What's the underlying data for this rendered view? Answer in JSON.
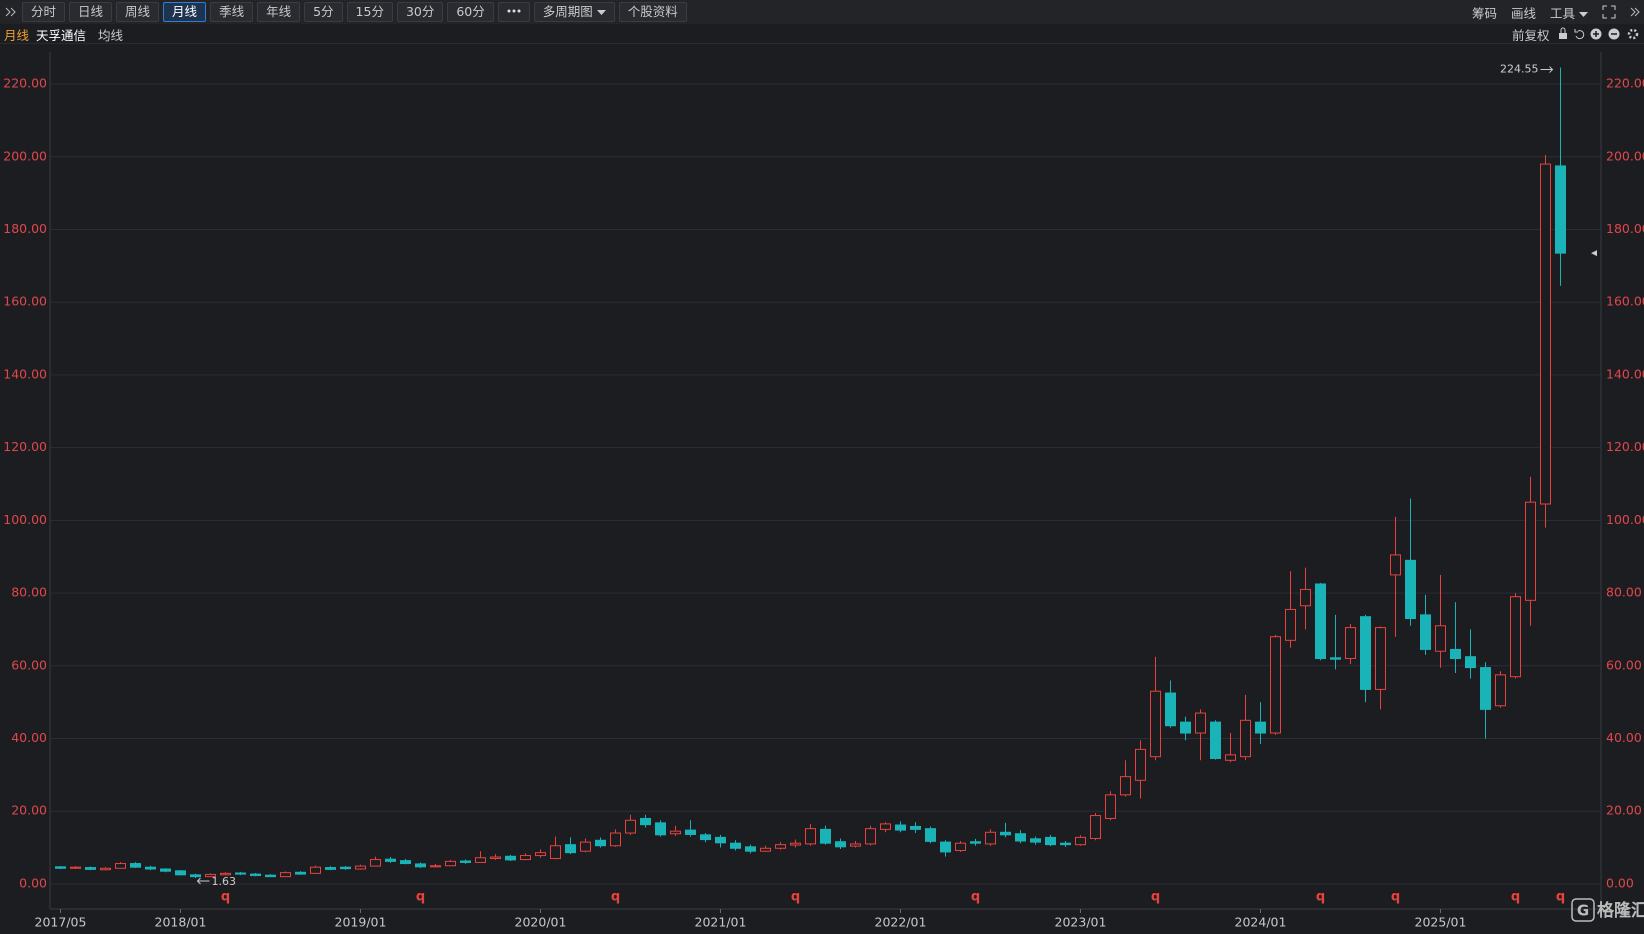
{
  "toolbar": {
    "periods": [
      "分时",
      "日线",
      "周线",
      "月线",
      "季线",
      "年线",
      "5分",
      "15分",
      "30分",
      "60分"
    ],
    "active_index": 3,
    "multi_period": "多周期图",
    "profile": "个股资料",
    "right": [
      "筹码",
      "画线",
      "工具"
    ]
  },
  "info_bar": {
    "period": "月线",
    "stock_name": "天孚通信",
    "indicator": "均线",
    "adjust": "前复权"
  },
  "watermark": "格隆汇",
  "chart_data": {
    "type": "candlestick",
    "categories": [
      "2017/05",
      null,
      null,
      null,
      null,
      null,
      null,
      null,
      "2018/01",
      null,
      null,
      null,
      null,
      null,
      null,
      null,
      null,
      null,
      null,
      null,
      "2019/01",
      null,
      null,
      null,
      null,
      null,
      null,
      null,
      null,
      null,
      null,
      null,
      "2020/01",
      null,
      null,
      null,
      null,
      null,
      null,
      null,
      null,
      null,
      null,
      null,
      "2021/01",
      null,
      null,
      null,
      null,
      null,
      null,
      null,
      null,
      null,
      null,
      null,
      "2022/01",
      null,
      null,
      null,
      null,
      null,
      null,
      null,
      null,
      null,
      null,
      null,
      "2023/01",
      null,
      null,
      null,
      null,
      null,
      null,
      null,
      null,
      null,
      null,
      null,
      "2024/01",
      null,
      null,
      null,
      null,
      null,
      null,
      null,
      null,
      null,
      null,
      null,
      "2025/01",
      null,
      null,
      null,
      null,
      null,
      null,
      null,
      null
    ],
    "open": [
      4.7,
      4.3,
      4.5,
      3.9,
      4.3,
      5.6,
      4.6,
      4.1,
      3.6,
      2.5,
      2.0,
      2.5,
      3.0,
      2.7,
      2.4,
      2.0,
      3.2,
      2.9,
      4.5,
      4.6,
      4.1,
      4.9,
      6.8,
      6.4,
      5.5,
      4.7,
      5.0,
      6.3,
      5.9,
      7.0,
      7.6,
      6.7,
      7.8,
      7.0,
      10.8,
      9.0,
      12.0,
      10.5,
      14.0,
      18,
      16.8,
      13.8,
      14.8,
      13.5,
      12.8,
      11.2,
      10.2,
      9.0,
      9.8,
      10.7,
      11.0,
      15.0,
      11.6,
      10.4,
      11.0,
      15.0,
      16.2,
      15.8,
      15.2,
      11.5,
      9.2,
      11.6,
      11.0,
      14.2,
      13.8,
      12.4,
      12.8,
      11.2,
      10.8,
      12.5,
      18,
      24.5,
      28.5,
      35,
      52.5,
      44.5,
      41.5,
      44.5,
      34,
      35,
      44.5,
      41.5,
      67,
      76.5,
      82.5,
      62.2,
      62,
      73.5,
      53.5,
      85,
      89,
      74,
      64,
      64.5,
      62.5,
      59.5,
      49,
      57,
      78,
      104.5,
      197.5
    ],
    "high": [
      4.9,
      4.9,
      4.8,
      4.6,
      6.0,
      6.0,
      5.0,
      4.3,
      3.8,
      2.8,
      2.9,
      3.2,
      3.3,
      3.0,
      2.7,
      3.4,
      3.5,
      5.0,
      4.9,
      4.9,
      5.3,
      7.5,
      7.4,
      6.9,
      5.9,
      5.5,
      6.6,
      6.7,
      9.0,
      8.2,
      8.0,
      8.4,
      9.5,
      13,
      12.8,
      12.5,
      12.8,
      15,
      19,
      19,
      17.5,
      16,
      17.5,
      14,
      13.5,
      12,
      10.8,
      10.5,
      11.5,
      12.2,
      16.5,
      16,
      12.5,
      11.8,
      16,
      17,
      17.2,
      17,
      15.8,
      12,
      11.8,
      12.4,
      15,
      16.8,
      14.8,
      13,
      13.5,
      11.8,
      13.4,
      19.5,
      25.5,
      34,
      39.5,
      62.5,
      56,
      46,
      48,
      45,
      41.5,
      52,
      50,
      68.5,
      86,
      87,
      82.8,
      74,
      71.5,
      74,
      70.8,
      101,
      106,
      79.5,
      85,
      77.5,
      70,
      61,
      58.5,
      80,
      112,
      200.5,
      224.55
    ],
    "low": [
      4.1,
      4.1,
      3.8,
      3.7,
      4.2,
      4.4,
      3.8,
      3.2,
      2.3,
      1.63,
      1.9,
      2.3,
      2.4,
      2.1,
      1.9,
      1.9,
      2.5,
      2.8,
      3.8,
      3.9,
      3.9,
      4.8,
      5.8,
      5.4,
      4.4,
      4.5,
      4.9,
      5.5,
      5.8,
      6.6,
      6.3,
      6.5,
      7.2,
      6.8,
      8.2,
      8.7,
      10,
      10.2,
      13.5,
      15.5,
      13,
      13.2,
      13,
      11.5,
      10,
      9.2,
      8.4,
      8.8,
      9.4,
      10,
      10.5,
      10.8,
      9.6,
      10,
      10.6,
      14.2,
      14.2,
      14,
      11.2,
      7.5,
      8.8,
      10.5,
      10.5,
      12.8,
      11.2,
      10.8,
      10.4,
      10.2,
      10.5,
      12,
      17.5,
      24,
      23.5,
      34,
      43,
      39.5,
      34,
      34.2,
      33.5,
      34,
      38.5,
      41,
      65,
      70,
      61.5,
      59,
      60.5,
      50,
      48,
      68,
      71,
      63,
      59.5,
      58,
      56.5,
      40,
      48.5,
      56.5,
      71,
      98,
      164.5
    ],
    "close": [
      4.3,
      4.6,
      4.0,
      4.3,
      5.6,
      4.6,
      4.1,
      3.5,
      2.5,
      2.0,
      2.6,
      2.9,
      2.7,
      2.3,
      2.0,
      3.1,
      2.7,
      4.6,
      4.0,
      4.2,
      4.9,
      6.7,
      6.2,
      5.6,
      4.7,
      5.0,
      6.2,
      5.9,
      7.2,
      7.4,
      6.6,
      7.8,
      8.6,
      10.5,
      8.6,
      11.5,
      10.5,
      14.0,
      17.5,
      16.3,
      13.5,
      14.5,
      13.6,
      12.2,
      11.3,
      9.8,
      9.0,
      9.8,
      10.8,
      11.2,
      15.2,
      11.2,
      10.2,
      11.0,
      15.2,
      16.5,
      14.8,
      15.0,
      11.7,
      8.8,
      11.2,
      11.2,
      14.2,
      13.5,
      11.8,
      11.5,
      10.8,
      10.8,
      12.8,
      18.8,
      24.5,
      29.5,
      37,
      53,
      43.5,
      41.5,
      47,
      34.5,
      35.5,
      45,
      41.5,
      68,
      75.5,
      81,
      62,
      61.8,
      70.5,
      53.5,
      70.5,
      90.5,
      73,
      64.5,
      71,
      62,
      59.5,
      48,
      57.5,
      79,
      105,
      198,
      173.5
    ],
    "event_flags": [
      null,
      null,
      null,
      null,
      null,
      null,
      null,
      null,
      null,
      null,
      null,
      "q",
      null,
      null,
      null,
      null,
      null,
      null,
      null,
      null,
      null,
      null,
      null,
      null,
      "q",
      null,
      null,
      null,
      null,
      null,
      null,
      null,
      null,
      null,
      null,
      null,
      null,
      "q",
      null,
      null,
      null,
      null,
      null,
      null,
      null,
      null,
      null,
      null,
      null,
      "q",
      null,
      null,
      null,
      null,
      null,
      null,
      null,
      null,
      null,
      null,
      null,
      "q",
      null,
      null,
      null,
      null,
      null,
      null,
      null,
      null,
      null,
      null,
      null,
      "q",
      null,
      null,
      null,
      null,
      null,
      null,
      null,
      null,
      null,
      null,
      "q",
      null,
      null,
      null,
      null,
      "q",
      null,
      null,
      null,
      null,
      null,
      null,
      null,
      "q",
      null,
      null,
      "q"
    ],
    "max_index": 100,
    "min_index": 9,
    "up_color": "#e8413e",
    "down_color": "#1ab3b8",
    "flag_color": "#e8413e",
    "ylim": [
      -2.5,
      228
    ],
    "yticks": [
      {
        "value": 0,
        "label": "0.00"
      },
      {
        "value": 20,
        "label": "20.00"
      },
      {
        "value": 40,
        "label": "40.00"
      },
      {
        "value": 60,
        "label": "60.00"
      },
      {
        "value": 80,
        "label": "80.00"
      },
      {
        "value": 100,
        "label": "100.00"
      },
      {
        "value": 120,
        "label": "120.00"
      },
      {
        "value": 140,
        "label": "140.00"
      },
      {
        "value": 160,
        "label": "160.00"
      },
      {
        "value": 180,
        "label": "180.00"
      },
      {
        "value": 200,
        "label": "200.00"
      },
      {
        "value": 220,
        "label": "220.00"
      }
    ],
    "grid": true
  }
}
